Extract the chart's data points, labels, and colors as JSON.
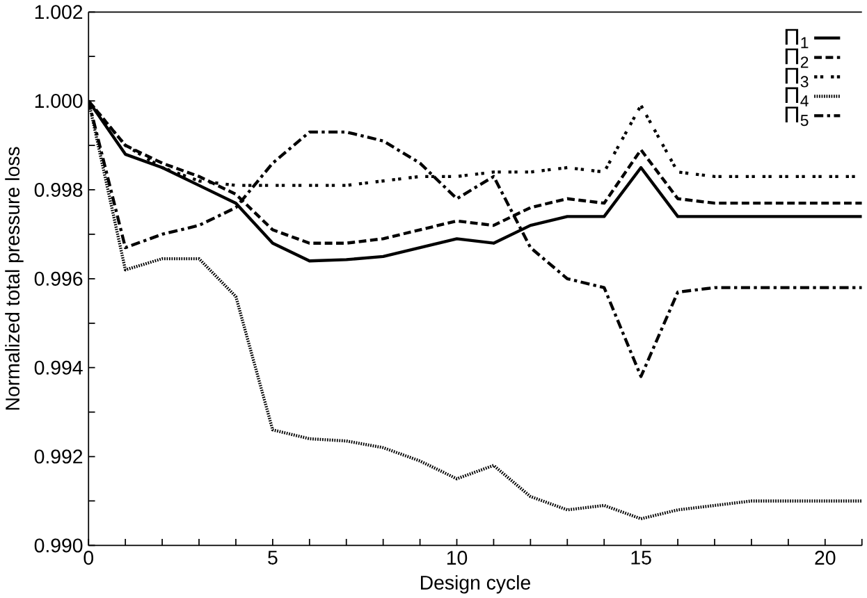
{
  "chart_data": {
    "type": "line",
    "xlabel": "Design cycle",
    "ylabel": "Normalized total pressure loss",
    "x": [
      0,
      1,
      2,
      3,
      4,
      5,
      6,
      7,
      8,
      9,
      10,
      11,
      12,
      13,
      14,
      15,
      16,
      17,
      18,
      19,
      20,
      21
    ],
    "series": [
      {
        "name": "Π$_{1}$",
        "color": "#000000",
        "line_style": "solid",
        "values": [
          1.0,
          0.9988,
          0.9985,
          0.9981,
          0.9977,
          0.9968,
          0.9964,
          0.99643,
          0.9965,
          0.9967,
          0.9969,
          0.9968,
          0.9972,
          0.9974,
          0.9974,
          0.9985,
          0.9974,
          0.9974,
          0.9974,
          0.9974,
          0.9974,
          0.9974
        ]
      },
      {
        "name": "Π$_{2}$",
        "color": "#000000",
        "line_style": "dashed",
        "values": [
          1.0,
          0.999,
          0.9986,
          0.9983,
          0.9979,
          0.9971,
          0.9968,
          0.9968,
          0.9969,
          0.9971,
          0.9973,
          0.9972,
          0.9976,
          0.9978,
          0.9977,
          0.9989,
          0.9978,
          0.9977,
          0.9977,
          0.9977,
          0.9977,
          0.9977
        ]
      },
      {
        "name": "Π$_{3}$",
        "color": "#000000",
        "line_style": "dotted",
        "values": [
          1.0,
          0.999,
          0.9985,
          0.9982,
          0.9981,
          0.9981,
          0.9981,
          0.9981,
          0.9982,
          0.9983,
          0.9983,
          0.9984,
          0.9984,
          0.9985,
          0.9984,
          0.9999,
          0.9984,
          0.9983,
          0.9983,
          0.9983,
          0.9983,
          0.9983
        ]
      },
      {
        "name": "Π$_{4}$",
        "color": "#000000",
        "line_style": "densely dotted",
        "values": [
          1.0,
          0.9962,
          0.99645,
          0.99645,
          0.9956,
          0.9926,
          0.9924,
          0.99235,
          0.9922,
          0.9919,
          0.9915,
          0.9918,
          0.9911,
          0.9908,
          0.9909,
          0.9906,
          0.9908,
          0.9909,
          0.991,
          0.991,
          0.991,
          0.991
        ]
      },
      {
        "name": "Π$_{5}$",
        "color": "#000000",
        "line_style": "dashdot",
        "values": [
          1.0,
          0.9967,
          0.997,
          0.9972,
          0.9976,
          0.9986,
          0.9993,
          0.9993,
          0.9991,
          0.9986,
          0.9978,
          0.9983,
          0.9967,
          0.996,
          0.9958,
          0.9938,
          0.9957,
          0.9958,
          0.9958,
          0.9958,
          0.9958,
          0.9958
        ]
      }
    ],
    "xlim": [
      0,
      21
    ],
    "xticks": [
      0,
      {
        "value": 1,
        "label": null
      },
      {
        "value": 2,
        "label": null
      },
      {
        "value": 3,
        "label": null
      },
      {
        "value": 4,
        "label": null
      },
      5,
      {
        "value": 6,
        "label": null
      },
      {
        "value": 7,
        "label": null
      },
      {
        "value": 8,
        "label": null
      },
      {
        "value": 9,
        "label": null
      },
      10,
      {
        "value": 11,
        "label": null
      },
      {
        "value": 12,
        "label": null
      },
      {
        "value": 13,
        "label": null
      },
      {
        "value": 14,
        "label": null
      },
      15,
      {
        "value": 16,
        "label": null
      },
      {
        "value": 17,
        "label": null
      },
      {
        "value": 18,
        "label": null
      },
      {
        "value": 19,
        "label": null
      },
      20,
      {
        "value": 21,
        "label": null
      }
    ],
    "ylim": [
      0.99,
      1.002
    ],
    "yticks": [
      {
        "value": 0.99,
        "label": "0.990"
      },
      {
        "value": 0.991,
        "label": null
      },
      {
        "value": 0.992,
        "label": "0.992"
      },
      {
        "value": 0.993,
        "label": null
      },
      {
        "value": 0.994,
        "label": "0.994"
      },
      {
        "value": 0.995,
        "label": null
      },
      {
        "value": 0.996,
        "label": "0.996"
      },
      {
        "value": 0.997,
        "label": null
      },
      {
        "value": 0.998,
        "label": "0.998"
      },
      {
        "value": 0.999,
        "label": null
      },
      {
        "value": 1.0,
        "label": "1.000"
      },
      {
        "value": 1.001,
        "label": null
      },
      {
        "value": 1.002,
        "label": "1.002"
      }
    ],
    "grid": false,
    "legend": "top right",
    "marker": "none"
  }
}
